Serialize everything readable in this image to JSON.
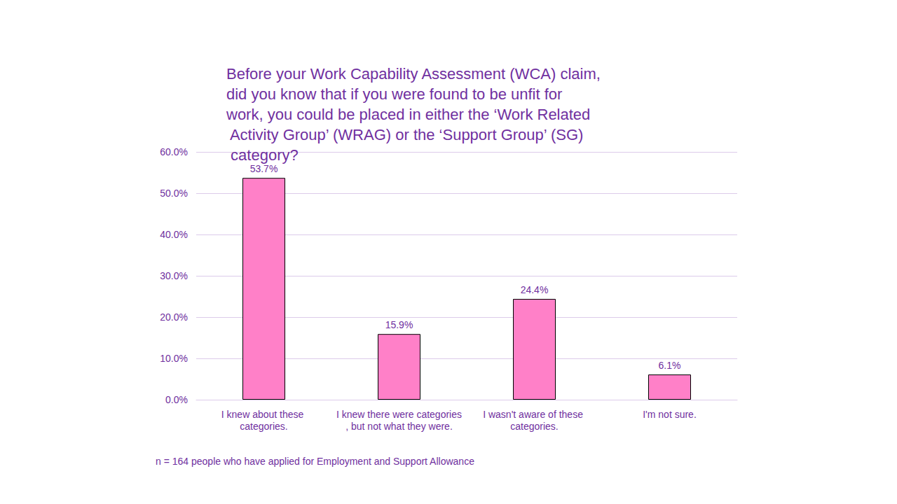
{
  "chart_data": {
    "type": "bar",
    "title": "Before your Work Capability Assessment (WCA) claim, did you know that if you were found to be unfit for work, you could be placed in either the ‘Work Related Activity Group’ (WRAG) or the ‘Support Group’ (SG) category?",
    "categories": [
      "I knew about these categories.",
      "I knew there were categories, but not what they were.",
      "I wasn't aware of these categories.",
      "I'm not sure."
    ],
    "values": [
      53.7,
      15.9,
      24.4,
      6.1
    ],
    "value_labels": [
      "53.7%",
      "15.9%",
      "24.4%",
      "6.1%"
    ],
    "color": "#ff80c8",
    "ylim": [
      0,
      60
    ],
    "yticks": [
      {
        "value": 0,
        "label": "0.0%"
      },
      {
        "value": 10,
        "label": "10.0%"
      },
      {
        "value": 20,
        "label": "20.0%"
      },
      {
        "value": 30,
        "label": "30.0%"
      },
      {
        "value": 40,
        "label": "40.0%"
      },
      {
        "value": 50,
        "label": "50.0%"
      },
      {
        "value": 60,
        "label": "60.0%"
      }
    ],
    "grid": true,
    "data_labels": true,
    "annotations": [
      "n = 164 people who have applied for Employment and Support Allowance"
    ]
  }
}
